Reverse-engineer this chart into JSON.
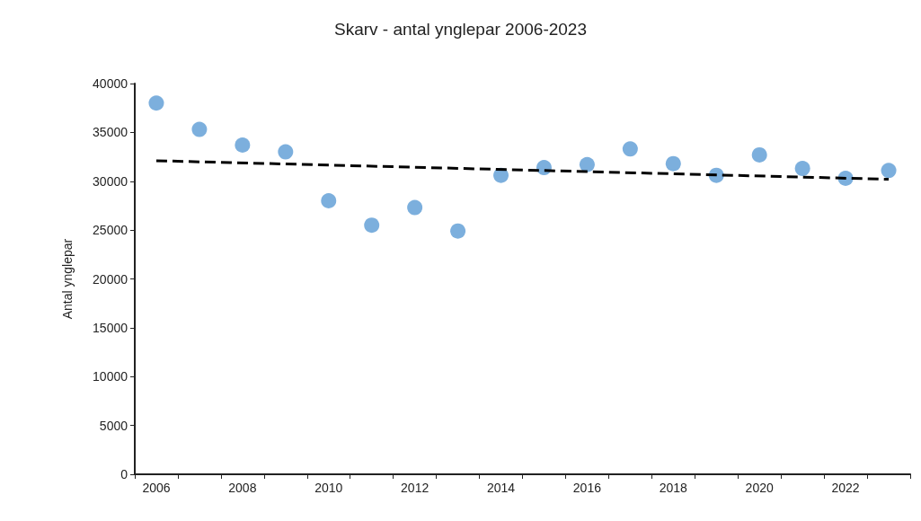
{
  "chart_data": {
    "type": "scatter",
    "title": "Skarv - antal ynglepar 2006-2023",
    "ylabel": "Antal ynglepar",
    "categories": [
      "2006",
      null,
      "2008",
      null,
      "2010",
      null,
      "2012",
      null,
      "2014",
      null,
      "2016",
      null,
      "2018",
      null,
      "2020",
      null,
      "2022",
      null
    ],
    "series": [
      {
        "color": "#5b9bd5",
        "marker": "circle",
        "values": [
          38000,
          35300,
          33700,
          33000,
          28000,
          25500,
          27300,
          24900,
          30600,
          31400,
          31700,
          33300,
          31800,
          30600,
          32700,
          31300,
          30300,
          31100
        ]
      },
      {
        "type": "line",
        "color": "#000000",
        "marker": "none",
        "line_style": "dashed",
        "values": [
          32100,
          null,
          null,
          null,
          null,
          null,
          null,
          null,
          null,
          null,
          null,
          null,
          null,
          null,
          null,
          null,
          null,
          30200
        ]
      }
    ],
    "ylim": [
      0,
      40000
    ],
    "yticks": [
      0,
      5000,
      10000,
      15000,
      20000,
      25000,
      30000,
      35000,
      40000
    ],
    "grid": false
  }
}
